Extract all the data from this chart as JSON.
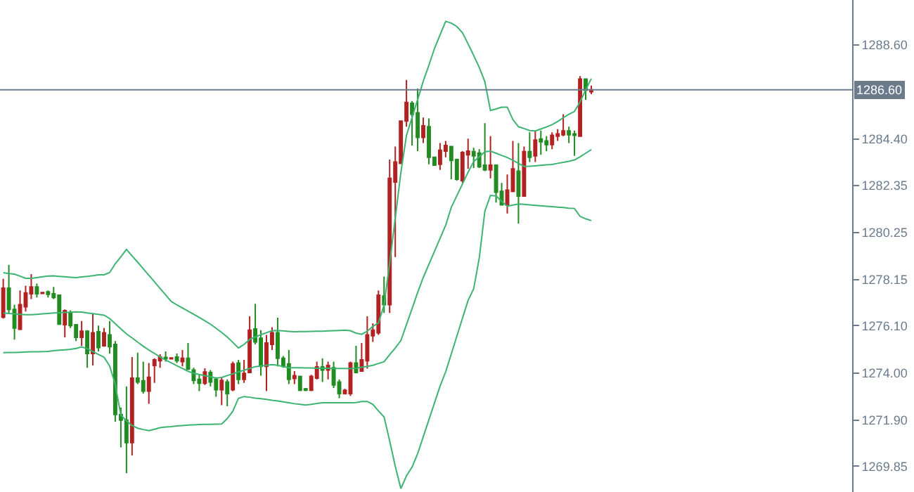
{
  "chart_data": {
    "type": "candlestick",
    "categories": [
      null,
      null,
      null,
      null,
      null,
      null,
      null,
      null,
      null,
      null,
      null,
      null,
      null,
      null,
      null,
      null,
      null,
      null,
      null,
      null,
      null,
      null,
      null,
      null,
      null,
      null,
      null,
      null,
      null,
      null,
      null,
      null,
      null,
      null,
      null,
      null,
      null,
      null,
      null,
      null,
      null,
      null,
      null,
      null,
      null,
      null,
      null,
      null,
      null,
      null,
      null,
      null,
      null,
      null,
      null,
      null,
      null,
      null,
      null,
      null,
      null,
      null,
      null,
      null,
      null,
      null,
      null,
      null,
      null,
      null,
      null,
      null,
      null,
      null,
      null,
      null,
      null,
      null,
      null,
      null,
      null,
      null,
      null,
      null,
      null,
      null,
      null,
      null,
      null,
      null,
      null,
      null,
      null,
      null,
      null,
      null,
      null,
      null,
      null,
      null,
      null,
      null,
      null,
      null,
      null,
      null
    ],
    "ohlc": [
      [
        1276.48,
        1278.19,
        1276.42,
        1277.77
      ],
      [
        1277.77,
        1278.81,
        1276.63,
        1276.83
      ],
      [
        1276.83,
        1277.04,
        1275.48,
        1276.0
      ],
      [
        1275.94,
        1277.67,
        1275.9,
        1277.04
      ],
      [
        1276.94,
        1277.88,
        1276.73,
        1277.56
      ],
      [
        1277.52,
        1278.4,
        1277.29,
        1277.83
      ],
      [
        1277.83,
        1277.98,
        1277.36,
        1277.52
      ],
      [
        1277.54,
        1277.61,
        1277.52,
        1277.58
      ],
      [
        1277.61,
        1277.67,
        1277.36,
        1277.5
      ],
      [
        1277.52,
        1277.83,
        1277.29,
        1277.36
      ],
      [
        1277.46,
        1277.46,
        1276.15,
        1276.17
      ],
      [
        1276.15,
        1276.83,
        1275.58,
        1276.77
      ],
      [
        1276.69,
        1276.79,
        1276.0,
        1276.11
      ],
      [
        1276.15,
        1276.15,
        1275.42,
        1275.58
      ],
      [
        1275.58,
        1276.31,
        1275.21,
        1275.86
      ],
      [
        1275.86,
        1275.9,
        1274.23,
        1274.86
      ],
      [
        1274.86,
        1276.63,
        1274.33,
        1275.79
      ],
      [
        1275.83,
        1276.11,
        1274.96,
        1275.13
      ],
      [
        1275.21,
        1276.0,
        1275.17,
        1275.79
      ],
      [
        1275.69,
        1276.31,
        1274.86,
        1275.17
      ],
      [
        1275.27,
        1275.42,
        1271.83,
        1272.15
      ],
      [
        1272.15,
        1272.46,
        1270.69,
        1271.9
      ],
      [
        1271.9,
        1273.4,
        1269.54,
        1270.9
      ],
      [
        1270.9,
        1274.71,
        1270.33,
        1273.77
      ],
      [
        1273.77,
        1274.9,
        1273.5,
        1273.6
      ],
      [
        1273.65,
        1274.5,
        1273.08,
        1273.19
      ],
      [
        1273.19,
        1274.44,
        1272.63,
        1273.81
      ],
      [
        1274.33,
        1274.65,
        1273.56,
        1274.58
      ],
      [
        1274.54,
        1274.83,
        1274.23,
        1274.71
      ],
      [
        1274.69,
        1274.96,
        1274.5,
        1274.63
      ],
      [
        1274.63,
        1274.69,
        1274.6,
        1274.67
      ],
      [
        1274.71,
        1274.86,
        1274.44,
        1274.54
      ],
      [
        1274.5,
        1275.02,
        1274.29,
        1274.65
      ],
      [
        1274.65,
        1275.33,
        1274.13,
        1274.17
      ],
      [
        1274.13,
        1274.23,
        1273.5,
        1273.67
      ],
      [
        1273.71,
        1273.92,
        1273.19,
        1273.54
      ],
      [
        1273.54,
        1274.21,
        1273.46,
        1274.04
      ],
      [
        1274.02,
        1274.13,
        1273.4,
        1273.6
      ],
      [
        1273.71,
        1273.81,
        1272.94,
        1273.25
      ],
      [
        1273.25,
        1273.81,
        1272.56,
        1273.67
      ],
      [
        1273.6,
        1273.71,
        1272.52,
        1273.08
      ],
      [
        1273.25,
        1274.5,
        1273.19,
        1274.4
      ],
      [
        1274.44,
        1274.58,
        1273.5,
        1273.71
      ],
      [
        1273.71,
        1274.58,
        1273.56,
        1273.98
      ],
      [
        1274.02,
        1276.52,
        1274.02,
        1275.9
      ],
      [
        1275.96,
        1277.08,
        1275.27,
        1275.38
      ],
      [
        1275.54,
        1275.9,
        1273.88,
        1274.29
      ],
      [
        1274.29,
        1275.69,
        1273.19,
        1275.33
      ],
      [
        1275.27,
        1276.04,
        1275.02,
        1275.79
      ],
      [
        1275.79,
        1276.46,
        1274.29,
        1274.65
      ],
      [
        1274.65,
        1274.75,
        1274.23,
        1274.29
      ],
      [
        1274.4,
        1275.02,
        1273.5,
        1273.71
      ],
      [
        1273.75,
        1274.08,
        1273.5,
        1273.88
      ],
      [
        1273.85,
        1273.88,
        1273.19,
        1273.23
      ],
      [
        1273.29,
        1273.33,
        1273.19,
        1273.23
      ],
      [
        1273.23,
        1273.92,
        1273.19,
        1273.85
      ],
      [
        1273.77,
        1274.5,
        1273.71,
        1274.27
      ],
      [
        1274.27,
        1274.65,
        1273.6,
        1274.13
      ],
      [
        1274.13,
        1274.5,
        1273.71,
        1274.33
      ],
      [
        1274.23,
        1274.5,
        1273.33,
        1273.46
      ],
      [
        1273.6,
        1273.71,
        1272.88,
        1273.08
      ],
      [
        1273.08,
        1273.29,
        1273.04,
        1273.23
      ],
      [
        1273.08,
        1274.5,
        1272.98,
        1274.44
      ],
      [
        1274.44,
        1275.21,
        1273.98,
        1274.02
      ],
      [
        1274.08,
        1275.33,
        1274.08,
        1274.58
      ],
      [
        1274.54,
        1276.52,
        1274.19,
        1275.69
      ],
      [
        1275.65,
        1276.21,
        1275.38,
        1275.9
      ],
      [
        1275.79,
        1277.67,
        1275.69,
        1277.46
      ],
      [
        1277.42,
        1278.29,
        1276.67,
        1277.04
      ],
      [
        1277.04,
        1283.5,
        1276.67,
        1282.66
      ],
      [
        1282.5,
        1284.08,
        1279.16,
        1283.39
      ],
      [
        1283.33,
        1285.21,
        1283.33,
        1285.21
      ],
      [
        1285.21,
        1287.04,
        1284.96,
        1286.04
      ],
      [
        1286.0,
        1286.1,
        1284.12,
        1285.52
      ],
      [
        1285.58,
        1286.66,
        1283.87,
        1284.48
      ],
      [
        1284.48,
        1285.37,
        1284.23,
        1285.0
      ],
      [
        1284.96,
        1285.33,
        1283.29,
        1283.6
      ],
      [
        1283.6,
        1283.6,
        1283.25,
        1283.25
      ],
      [
        1283.29,
        1284.23,
        1283.04,
        1283.91
      ],
      [
        1283.87,
        1284.33,
        1283.6,
        1284.12
      ],
      [
        1284.08,
        1284.08,
        1282.62,
        1283.46
      ],
      [
        1283.5,
        1283.54,
        1282.56,
        1282.62
      ],
      [
        1282.56,
        1283.87,
        1282.46,
        1283.81
      ],
      [
        1283.71,
        1284.43,
        1283.08,
        1283.87
      ],
      [
        1283.85,
        1284.02,
        1283.12,
        1283.66
      ],
      [
        1283.79,
        1283.96,
        1283.12,
        1283.18
      ],
      [
        1283.25,
        1285.12,
        1282.98,
        1283.04
      ],
      [
        1283.04,
        1284.54,
        1282.66,
        1283.25
      ],
      [
        1283.25,
        1283.25,
        1281.58,
        1282.04
      ],
      [
        1282.08,
        1282.46,
        1281.48,
        1281.48
      ],
      [
        1281.48,
        1282.83,
        1281.1,
        1282.14
      ],
      [
        1282.08,
        1284.33,
        1282.04,
        1283.08
      ],
      [
        1282.98,
        1284.23,
        1280.64,
        1281.87
      ],
      [
        1281.87,
        1284.08,
        1281.87,
        1283.85
      ],
      [
        1283.85,
        1284.71,
        1283.39,
        1283.6
      ],
      [
        1283.66,
        1284.79,
        1283.39,
        1284.37
      ],
      [
        1284.41,
        1284.79,
        1283.71,
        1284.29
      ],
      [
        1284.33,
        1284.54,
        1283.87,
        1284.16
      ],
      [
        1284.16,
        1284.71,
        1283.96,
        1284.58
      ],
      [
        1284.54,
        1284.85,
        1284.33,
        1284.64
      ],
      [
        1284.6,
        1285.52,
        1284.54,
        1284.77
      ],
      [
        1284.77,
        1284.96,
        1284.23,
        1284.6
      ],
      [
        1284.64,
        1284.79,
        1283.66,
        1284.58
      ],
      [
        1284.54,
        1287.21,
        1284.54,
        1287.08
      ],
      [
        1287.08,
        1287.08,
        1286.16,
        1286.58
      ],
      [
        1286.52,
        1286.79,
        1286.41,
        1286.6
      ]
    ],
    "colors": [
      "#b22222",
      "#228b22",
      "#228b22",
      "#b22222",
      "#b22222",
      "#b22222",
      "#228b22",
      "#b22222",
      "#228b22",
      "#228b22",
      "#228b22",
      "#b22222",
      "#228b22",
      "#228b22",
      "#b22222",
      "#228b22",
      "#b22222",
      "#228b22",
      "#b22222",
      "#228b22",
      "#228b22",
      "#228b22",
      "#228b22",
      "#b22222",
      "#228b22",
      "#228b22",
      "#b22222",
      "#b22222",
      "#b22222",
      "#228b22",
      "#b22222",
      "#228b22",
      "#b22222",
      "#228b22",
      "#228b22",
      "#228b22",
      "#b22222",
      "#228b22",
      "#228b22",
      "#b22222",
      "#228b22",
      "#b22222",
      "#228b22",
      "#b22222",
      "#b22222",
      "#228b22",
      "#228b22",
      "#b22222",
      "#b22222",
      "#228b22",
      "#228b22",
      "#228b22",
      "#b22222",
      "#228b22",
      "#228b22",
      "#b22222",
      "#b22222",
      "#228b22",
      "#b22222",
      "#228b22",
      "#228b22",
      "#b22222",
      "#b22222",
      "#228b22",
      "#b22222",
      "#b22222",
      "#b22222",
      "#b22222",
      "#228b22",
      "#b22222",
      "#b22222",
      "#b22222",
      "#b22222",
      "#228b22",
      "#228b22",
      "#b22222",
      "#228b22",
      "#228b22",
      "#b22222",
      "#b22222",
      "#228b22",
      "#228b22",
      "#b22222",
      "#b22222",
      "#228b22",
      "#228b22",
      "#228b22",
      "#b22222",
      "#228b22",
      "#228b22",
      "#b22222",
      "#b22222",
      "#228b22",
      "#b22222",
      "#228b22",
      "#b22222",
      "#228b22",
      "#228b22",
      "#b22222",
      "#b22222",
      "#b22222",
      "#228b22",
      "#228b22",
      "#b22222",
      "#228b22",
      "#b22222"
    ],
    "series": [
      {
        "type": "line",
        "color": "#3cb371",
        "values": [
          1278.46,
          1278.42,
          1278.4,
          1278.31,
          1278.21,
          1278.21,
          1278.24,
          1278.28,
          1278.31,
          1278.32,
          1278.3,
          1278.28,
          1278.26,
          1278.24,
          1278.27,
          1278.3,
          1278.33,
          1278.37,
          1278.37,
          1278.47,
          1278.86,
          1279.17,
          1279.5,
          1279.21,
          1278.93,
          1278.64,
          1278.35,
          1278.06,
          1277.76,
          1277.47,
          1277.18,
          1277.03,
          1276.89,
          1276.75,
          1276.61,
          1276.47,
          1276.32,
          1276.17,
          1275.99,
          1275.8,
          1275.6,
          1275.36,
          1275.11,
          1275.27,
          1275.49,
          1275.6,
          1275.7,
          1275.79,
          1275.88,
          1275.89,
          1275.87,
          1275.85,
          1275.83,
          1275.84,
          1275.84,
          1275.85,
          1275.86,
          1275.86,
          1275.87,
          1275.88,
          1275.89,
          1275.9,
          1275.88,
          1275.77,
          1275.72,
          1275.86,
          1276.07,
          1276.22,
          1277.02,
          1278.89,
          1280.9,
          1282.92,
          1284.57,
          1285.37,
          1286.17,
          1286.99,
          1287.69,
          1288.44,
          1289.05,
          1289.65,
          1289.57,
          1289.42,
          1289.14,
          1288.65,
          1288.13,
          1287.6,
          1286.96,
          1285.68,
          1285.75,
          1285.83,
          1285.83,
          1285.28,
          1284.96,
          1284.88,
          1284.79,
          1284.77,
          1284.86,
          1284.95,
          1285.05,
          1285.19,
          1285.36,
          1285.51,
          1285.64,
          1286.06,
          1286.6,
          1287.1
        ]
      },
      {
        "type": "line",
        "color": "#3cb371",
        "values": [
          1276.67,
          1276.65,
          1276.63,
          1276.61,
          1276.59,
          1276.59,
          1276.61,
          1276.63,
          1276.65,
          1276.67,
          1276.68,
          1276.69,
          1276.7,
          1276.72,
          1276.71,
          1276.67,
          1276.64,
          1276.61,
          1276.57,
          1276.42,
          1276.19,
          1275.96,
          1275.74,
          1275.56,
          1275.37,
          1275.19,
          1275.02,
          1274.87,
          1274.71,
          1274.57,
          1274.45,
          1274.32,
          1274.2,
          1274.07,
          1273.99,
          1273.93,
          1273.88,
          1273.83,
          1273.77,
          1273.8,
          1273.88,
          1273.96,
          1274.04,
          1274.12,
          1274.2,
          1274.28,
          1274.31,
          1274.34,
          1274.37,
          1274.34,
          1274.28,
          1274.23,
          1274.23,
          1274.23,
          1274.22,
          1274.22,
          1274.21,
          1274.21,
          1274.21,
          1274.2,
          1274.2,
          1274.2,
          1274.19,
          1274.21,
          1274.25,
          1274.29,
          1274.34,
          1274.42,
          1274.5,
          1274.81,
          1275.11,
          1275.44,
          1276.15,
          1276.86,
          1277.58,
          1278.25,
          1278.83,
          1279.41,
          1279.99,
          1280.57,
          1281.37,
          1281.89,
          1282.41,
          1282.93,
          1283.41,
          1283.62,
          1283.84,
          1283.87,
          1283.78,
          1283.68,
          1283.59,
          1283.46,
          1283.33,
          1283.19,
          1283.2,
          1283.22,
          1283.24,
          1283.26,
          1283.28,
          1283.33,
          1283.37,
          1283.42,
          1283.48,
          1283.62,
          1283.78,
          1283.94
        ]
      },
      {
        "type": "line",
        "color": "#3cb371",
        "values": [
          1274.9,
          1274.91,
          1274.91,
          1274.92,
          1274.93,
          1274.94,
          1274.94,
          1274.95,
          1274.96,
          1274.99,
          1275.01,
          1275.03,
          1275.05,
          1275.09,
          1275.16,
          1275.08,
          1274.95,
          1274.82,
          1274.7,
          1274.31,
          1273.49,
          1272.12,
          1271.87,
          1271.66,
          1271.54,
          1271.48,
          1271.43,
          1271.49,
          1271.56,
          1271.59,
          1271.61,
          1271.64,
          1271.66,
          1271.68,
          1271.69,
          1271.7,
          1271.71,
          1271.71,
          1271.72,
          1271.73,
          1271.97,
          1272.3,
          1272.87,
          1272.95,
          1272.92,
          1272.88,
          1272.85,
          1272.82,
          1272.78,
          1272.75,
          1272.71,
          1272.67,
          1272.63,
          1272.6,
          1272.57,
          1272.6,
          1272.64,
          1272.67,
          1272.67,
          1272.67,
          1272.67,
          1272.67,
          1272.67,
          1272.68,
          1272.73,
          1272.73,
          1272.6,
          1272.31,
          1272.04,
          1270.98,
          1269.84,
          1268.85,
          1269.42,
          1269.81,
          1270.41,
          1271.16,
          1271.91,
          1272.66,
          1273.41,
          1274.05,
          1274.84,
          1275.64,
          1276.43,
          1277.23,
          1277.74,
          1279.12,
          1281.2,
          1281.9,
          1281.88,
          1281.64,
          1281.42,
          1281.47,
          1281.52,
          1281.5,
          1281.48,
          1281.46,
          1281.44,
          1281.42,
          1281.4,
          1281.38,
          1281.36,
          1281.33,
          1281.32,
          1280.97,
          1280.86,
          1280.78
        ]
      }
    ],
    "ylim": [
      1268.7,
      1290.6
    ],
    "yticks": [
      {
        "value": 1288.6,
        "label": "1288.60"
      },
      {
        "value": 1284.4,
        "label": "1284.40"
      },
      {
        "value": 1282.35,
        "label": "1282.35"
      },
      {
        "value": 1280.25,
        "label": "1280.25"
      },
      {
        "value": 1278.15,
        "label": "1278.15"
      },
      {
        "value": 1276.1,
        "label": "1276.10"
      },
      {
        "value": 1274.0,
        "label": "1274.00"
      },
      {
        "value": 1271.9,
        "label": "1271.90"
      },
      {
        "value": 1269.85,
        "label": "1269.85"
      }
    ],
    "ref_lines": [
      {
        "axis": "y",
        "value": 1286.6,
        "label": "1286.60",
        "color": "#6b7b8c"
      }
    ],
    "tick_labels": "y"
  }
}
